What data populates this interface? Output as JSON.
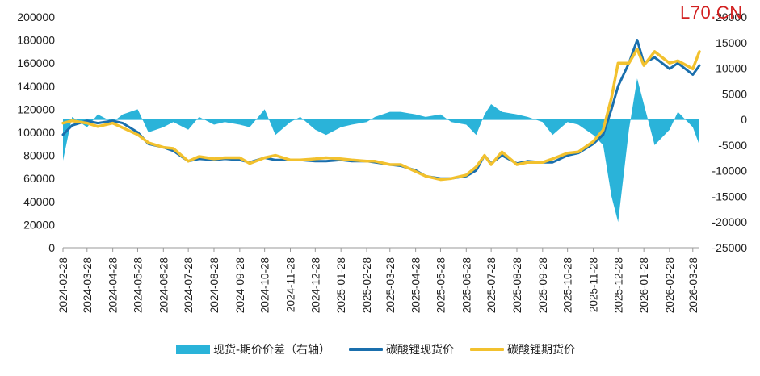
{
  "watermark": "L70.CN",
  "colors": {
    "spread": "#2ab3d9",
    "spot": "#1a6fad",
    "futures": "#f2c12e"
  },
  "chart_data": {
    "type": "line",
    "title": "",
    "left_axis": {
      "min": 0,
      "max": 200000,
      "ticks": [
        0,
        20000,
        40000,
        60000,
        80000,
        100000,
        120000,
        140000,
        160000,
        180000,
        200000
      ]
    },
    "right_axis": {
      "min": -25000,
      "max": 20000,
      "ticks": [
        -25000,
        -20000,
        -15000,
        -10000,
        -5000,
        0,
        5000,
        10000,
        15000,
        20000
      ]
    },
    "x_tick_labels": [
      "2024-02-28",
      "2024-03-28",
      "2024-04-28",
      "2024-05-28",
      "2024-06-28",
      "2024-07-28",
      "2024-08-28",
      "2024-09-28",
      "2024-10-28",
      "2024-11-28",
      "2024-12-28",
      "2025-01-28",
      "2025-02-28",
      "2025-03-28",
      "2025-04-28",
      "2025-05-28",
      "2025-06-28",
      "2025-07-28",
      "2025-08-28",
      "2025-09-28",
      "2025-10-28",
      "2025-11-28",
      "2025-12-28",
      "2026-01-28",
      "2026-02-28",
      "2026-03-28"
    ],
    "x": [
      "2024-02-28",
      "2024-03-10",
      "2024-03-28",
      "2024-04-10",
      "2024-04-28",
      "2024-05-10",
      "2024-05-28",
      "2024-06-10",
      "2024-06-28",
      "2024-07-10",
      "2024-07-28",
      "2024-08-10",
      "2024-08-28",
      "2024-09-10",
      "2024-09-28",
      "2024-10-10",
      "2024-10-28",
      "2024-11-10",
      "2024-11-28",
      "2024-12-10",
      "2024-12-28",
      "2025-01-10",
      "2025-01-28",
      "2025-02-10",
      "2025-02-28",
      "2025-03-10",
      "2025-03-28",
      "2025-04-10",
      "2025-04-28",
      "2025-05-10",
      "2025-05-28",
      "2025-06-10",
      "2025-06-28",
      "2025-07-10",
      "2025-07-20",
      "2025-07-28",
      "2025-08-10",
      "2025-08-28",
      "2025-09-10",
      "2025-09-28",
      "2025-10-10",
      "2025-10-28",
      "2025-11-10",
      "2025-11-28",
      "2025-12-10",
      "2025-12-20",
      "2025-12-28",
      "2026-01-10",
      "2026-01-20",
      "2026-01-28",
      "2026-02-10",
      "2026-02-28",
      "2026-03-10",
      "2026-03-28",
      "2026-04-05"
    ],
    "series": [
      {
        "name": "现货-期价价差（右轴）",
        "kind": "area",
        "axis": "right",
        "values": [
          -8000,
          500,
          -1500,
          1000,
          -500,
          1000,
          2000,
          -2500,
          -1500,
          -500,
          -2000,
          500,
          -1000,
          -500,
          -1000,
          -1500,
          2000,
          -3000,
          -500,
          500,
          -2000,
          -3000,
          -1500,
          -1000,
          -500,
          500,
          1500,
          1500,
          1000,
          500,
          1000,
          -500,
          -1000,
          -3000,
          1000,
          3000,
          1500,
          1000,
          500,
          -500,
          -3000,
          -500,
          -1000,
          -3000,
          -5000,
          -15000,
          -20000,
          -2000,
          8000,
          3000,
          -5000,
          -2000,
          1500,
          -1500,
          -5000
        ]
      },
      {
        "name": "碳酸锂现货价",
        "kind": "line",
        "axis": "left",
        "values": [
          98000,
          106000,
          110000,
          108000,
          110000,
          108000,
          100000,
          90000,
          87000,
          84000,
          75000,
          77000,
          76000,
          77000,
          76000,
          74000,
          78000,
          76000,
          76000,
          76000,
          75000,
          75000,
          76000,
          75000,
          75000,
          74000,
          72000,
          71000,
          67000,
          62000,
          60000,
          60000,
          62000,
          67000,
          80000,
          73000,
          80000,
          73000,
          75000,
          74000,
          74000,
          80000,
          82000,
          90000,
          98000,
          120000,
          140000,
          160000,
          180000,
          160000,
          165000,
          155000,
          160000,
          150000,
          158000
        ]
      },
      {
        "name": "碳酸锂期货价",
        "kind": "line",
        "axis": "left",
        "values": [
          108000,
          110000,
          108000,
          105000,
          108000,
          104000,
          98000,
          91000,
          87000,
          86000,
          75000,
          79000,
          77000,
          78000,
          78000,
          73000,
          78000,
          80000,
          76000,
          76000,
          77000,
          78000,
          77000,
          76000,
          75000,
          75000,
          72000,
          72000,
          66000,
          62000,
          59000,
          60000,
          63000,
          70000,
          80000,
          72000,
          83000,
          72000,
          74000,
          74000,
          77000,
          82000,
          83000,
          92000,
          102000,
          130000,
          160000,
          160000,
          172000,
          158000,
          170000,
          160000,
          162000,
          155000,
          170000
        ]
      }
    ]
  }
}
